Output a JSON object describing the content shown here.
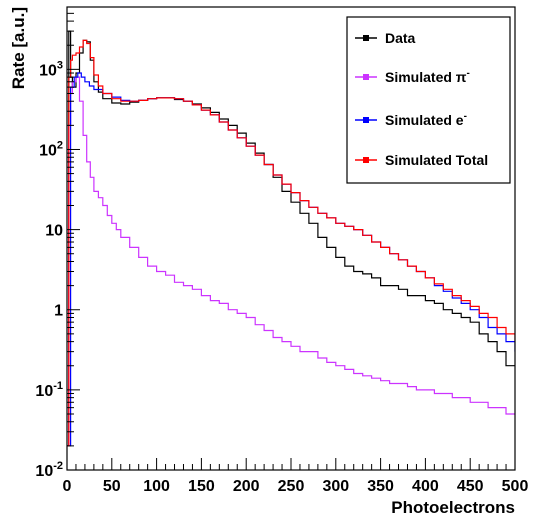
{
  "chart_data": {
    "type": "line",
    "xlabel": "Photoelectrons",
    "ylabel": "Rate [a.u.]",
    "xlim": [
      0,
      500
    ],
    "ylim": [
      0.01,
      6000
    ],
    "log_y": true,
    "grid": false,
    "legend_position": "top-right",
    "x_ticks": [
      {
        "value": 0,
        "label": "0"
      },
      {
        "value": 50,
        "label": "50"
      },
      {
        "value": 100,
        "label": "100"
      },
      {
        "value": 150,
        "label": "150"
      },
      {
        "value": 200,
        "label": "200"
      },
      {
        "value": 250,
        "label": "250"
      },
      {
        "value": 300,
        "label": "300"
      },
      {
        "value": 350,
        "label": "350"
      },
      {
        "value": 400,
        "label": "400"
      },
      {
        "value": 450,
        "label": "450"
      },
      {
        "value": 500,
        "label": "500"
      }
    ],
    "y_ticks": [
      {
        "value": 0.01,
        "base": "10",
        "exp": "-2"
      },
      {
        "value": 0.1,
        "base": "10",
        "exp": "-1"
      },
      {
        "value": 1,
        "base": "1",
        "exp": ""
      },
      {
        "value": 10,
        "base": "10",
        "exp": ""
      },
      {
        "value": 100,
        "base": "10",
        "exp": "2"
      },
      {
        "value": 1000,
        "base": "10",
        "exp": "3"
      }
    ],
    "series": [
      {
        "name": "Data",
        "legend_main": "Data",
        "legend_sup": "",
        "color": "#000000",
        "x": [
          0,
          2,
          4,
          6,
          10,
          14,
          18,
          22,
          26,
          30,
          35,
          40,
          50,
          60,
          70,
          80,
          90,
          100,
          110,
          120,
          130,
          140,
          150,
          160,
          170,
          180,
          190,
          200,
          210,
          220,
          230,
          240,
          250,
          260,
          270,
          280,
          290,
          300,
          310,
          320,
          330,
          340,
          350,
          360,
          370,
          380,
          390,
          400,
          410,
          420,
          430,
          440,
          450,
          460,
          470,
          480,
          490
        ],
        "y": [
          0.02,
          3000,
          800,
          600,
          900,
          1600,
          2300,
          2200,
          1300,
          700,
          520,
          430,
          380,
          370,
          390,
          410,
          430,
          440,
          440,
          420,
          400,
          370,
          330,
          290,
          240,
          200,
          160,
          120,
          90,
          65,
          45,
          30,
          22,
          16,
          12,
          8,
          6,
          4.5,
          3.5,
          3,
          2.8,
          2.5,
          2,
          2,
          1.8,
          1.5,
          1.5,
          1.3,
          1.2,
          1.0,
          0.9,
          0.8,
          0.7,
          0.5,
          0.4,
          0.3,
          0.2
        ]
      },
      {
        "name": "Simulated π-",
        "legend_main": "Simulated π",
        "legend_sup": "-",
        "color": "#cc33ff",
        "x": [
          0,
          2,
          4,
          6,
          10,
          14,
          18,
          22,
          26,
          30,
          35,
          40,
          45,
          50,
          55,
          60,
          70,
          80,
          90,
          100,
          110,
          120,
          130,
          140,
          150,
          160,
          170,
          180,
          190,
          200,
          210,
          220,
          230,
          240,
          250,
          260,
          270,
          280,
          290,
          300,
          310,
          320,
          330,
          340,
          350,
          360,
          370,
          380,
          390,
          400,
          410,
          420,
          430,
          440,
          450,
          460,
          470,
          480,
          490,
          500
        ],
        "y": [
          0.02,
          200,
          500,
          700,
          800,
          400,
          150,
          70,
          45,
          30,
          25,
          20,
          15,
          12,
          10,
          8,
          6,
          4.5,
          3.5,
          3,
          2.7,
          2.2,
          2,
          1.8,
          1.5,
          1.3,
          1.2,
          1.0,
          0.9,
          0.8,
          0.65,
          0.55,
          0.45,
          0.4,
          0.35,
          0.3,
          0.3,
          0.25,
          0.22,
          0.2,
          0.18,
          0.16,
          0.15,
          0.14,
          0.13,
          0.12,
          0.12,
          0.11,
          0.1,
          0.1,
          0.09,
          0.09,
          0.08,
          0.08,
          0.07,
          0.07,
          0.06,
          0.06,
          0.05,
          0.05
        ]
      },
      {
        "name": "Simulated e-",
        "legend_main": "Simulated e",
        "legend_sup": "-",
        "color": "#0000ff",
        "x": [
          0,
          4,
          8,
          12,
          16,
          20,
          25,
          30,
          40,
          50,
          60,
          70,
          80,
          90,
          100,
          110,
          120,
          130,
          140,
          150,
          160,
          170,
          180,
          190,
          200,
          210,
          220,
          230,
          240,
          250,
          260,
          270,
          280,
          290,
          300,
          310,
          320,
          330,
          340,
          350,
          360,
          370,
          380,
          390,
          400,
          410,
          420,
          430,
          440,
          450,
          460,
          470,
          480,
          490,
          500
        ],
        "y": [
          0.02,
          600,
          800,
          900,
          800,
          700,
          620,
          560,
          500,
          450,
          410,
          400,
          410,
          430,
          440,
          440,
          430,
          400,
          360,
          310,
          270,
          220,
          175,
          140,
          110,
          85,
          65,
          48,
          37,
          29,
          23,
          19,
          16,
          14,
          12,
          11,
          10,
          8.5,
          7,
          6,
          5,
          4.2,
          3.5,
          3,
          2.5,
          2.0,
          1.7,
          1.4,
          1.2,
          1.0,
          0.8,
          0.6,
          0.5,
          0.4,
          0.3
        ]
      },
      {
        "name": "Simulated Total",
        "legend_main": "Simulated Total",
        "legend_sup": "",
        "color": "#ff0000",
        "x": [
          0,
          2,
          4,
          6,
          10,
          14,
          18,
          22,
          26,
          30,
          35,
          40,
          50,
          60,
          70,
          80,
          90,
          100,
          110,
          120,
          130,
          140,
          150,
          160,
          170,
          180,
          190,
          200,
          210,
          220,
          230,
          240,
          250,
          260,
          270,
          280,
          290,
          300,
          310,
          320,
          330,
          340,
          350,
          360,
          370,
          380,
          390,
          400,
          410,
          420,
          430,
          440,
          450,
          460,
          470,
          480,
          490,
          500
        ],
        "y": [
          0.02,
          800,
          1300,
          1500,
          1600,
          1900,
          2300,
          2100,
          1400,
          850,
          620,
          500,
          430,
          400,
          400,
          410,
          430,
          440,
          440,
          430,
          400,
          360,
          310,
          270,
          220,
          175,
          140,
          110,
          85,
          65,
          48,
          37,
          29,
          23,
          19,
          16,
          14,
          12,
          11,
          10,
          8.5,
          7,
          6,
          5,
          4.2,
          3.5,
          3,
          2.5,
          2.1,
          1.8,
          1.5,
          1.3,
          1.1,
          0.9,
          0.8,
          0.6,
          0.5,
          0.4
        ]
      }
    ]
  }
}
